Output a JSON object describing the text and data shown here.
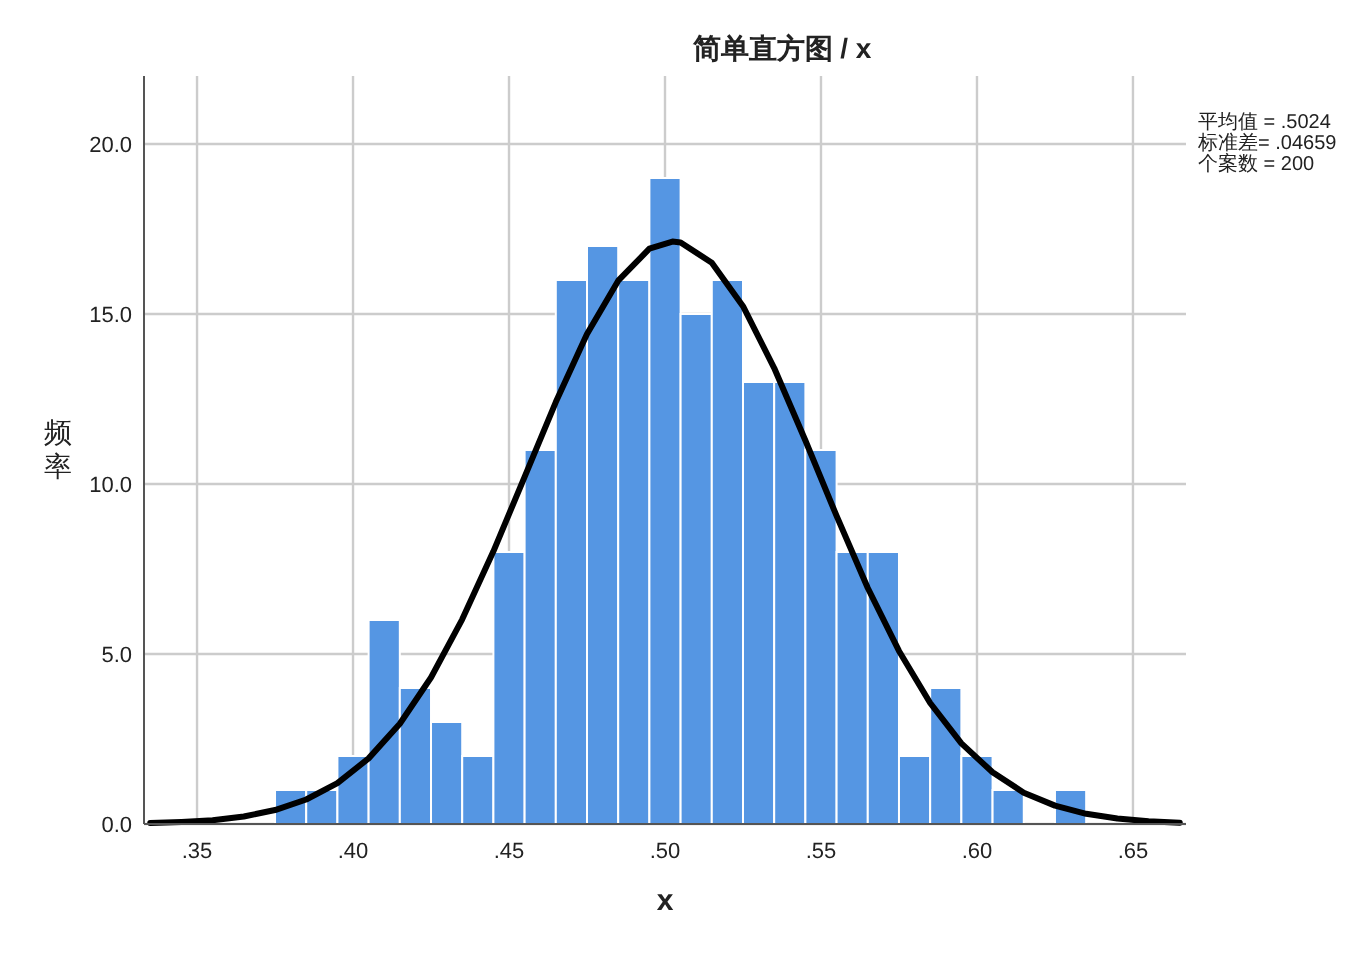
{
  "chart_data": {
    "type": "histogram",
    "title": "简单直方图 / x",
    "xlabel": "x",
    "ylabel": "频率",
    "annotations": [
      "平均值 = .5024",
      "标准差= .04659",
      "个案数 = 200"
    ],
    "series": [
      {
        "type": "histogram",
        "color": "#5596e3",
        "bins": [
          0.375,
          0.385,
          0.395,
          0.405,
          0.415,
          0.425,
          0.435,
          0.445,
          0.455,
          0.465,
          0.475,
          0.485,
          0.495,
          0.505,
          0.515,
          0.525,
          0.535,
          0.545,
          0.555,
          0.565,
          0.575,
          0.585,
          0.595,
          0.605,
          0.615,
          0.625,
          0.635
        ],
        "values": [
          1,
          1,
          2,
          6,
          4,
          3,
          2,
          8,
          11,
          16,
          17,
          16,
          19,
          15,
          16,
          13,
          13,
          11,
          8,
          8,
          2,
          4,
          2,
          1,
          0,
          1
        ]
      },
      {
        "type": "line",
        "color": "#000000",
        "x": [
          0.335,
          0.345,
          0.355,
          0.365,
          0.375,
          0.385,
          0.395,
          0.405,
          0.415,
          0.425,
          0.435,
          0.445,
          0.455,
          0.465,
          0.475,
          0.485,
          0.495,
          0.5024,
          0.505,
          0.515,
          0.525,
          0.535,
          0.545,
          0.555,
          0.565,
          0.575,
          0.585,
          0.595,
          0.605,
          0.615,
          0.625,
          0.635,
          0.645,
          0.655,
          0.665
        ],
        "values": [
          0.03,
          0.06,
          0.11,
          0.22,
          0.41,
          0.72,
          1.2,
          1.93,
          2.95,
          4.31,
          6.02,
          8.02,
          10.21,
          12.41,
          14.41,
          15.98,
          16.92,
          17.13,
          17.1,
          16.51,
          15.23,
          13.41,
          11.28,
          9.06,
          6.94,
          5.09,
          3.56,
          2.37,
          1.52,
          0.92,
          0.54,
          0.3,
          0.16,
          0.08,
          0.04
        ]
      }
    ],
    "xlim": [
      0.333,
      0.667
    ],
    "ylim": [
      0,
      22
    ],
    "xticks": [
      {
        "value": 0.35,
        "label": ".35"
      },
      {
        "value": 0.4,
        "label": ".40"
      },
      {
        "value": 0.45,
        "label": ".45"
      },
      {
        "value": 0.5,
        "label": ".50"
      },
      {
        "value": 0.55,
        "label": ".55"
      },
      {
        "value": 0.6,
        "label": ".60"
      },
      {
        "value": 0.65,
        "label": ".65"
      }
    ],
    "yticks": [
      {
        "value": 0,
        "label": "0.0"
      },
      {
        "value": 5,
        "label": "5.0"
      },
      {
        "value": 10,
        "label": "10.0"
      },
      {
        "value": 15,
        "label": "15.0"
      },
      {
        "value": 20,
        "label": "20.0"
      }
    ],
    "grid": true
  }
}
